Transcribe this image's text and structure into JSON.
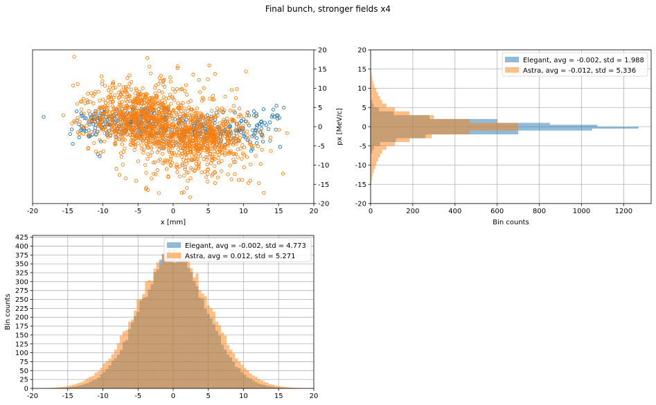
{
  "figure": {
    "title": "Final bunch, stronger fields x4"
  },
  "colors": {
    "elegant": "#1f77b4",
    "astra": "#ff7f0e",
    "grid": "#b0b0b0"
  },
  "chart_data": [
    {
      "id": "scatter",
      "type": "scatter",
      "title": "",
      "xlabel": "x [mm]",
      "ylabel": "",
      "xlim": [
        -20,
        20
      ],
      "ylim": [
        -20,
        20
      ],
      "xticks": [
        -20,
        -15,
        -10,
        -5,
        0,
        5,
        10,
        15,
        20
      ],
      "yticks": [
        -20,
        -15,
        -10,
        -5,
        0,
        5,
        10,
        15,
        20
      ],
      "y_tick_side": "right",
      "grid": false,
      "series": [
        {
          "color": "#1f77b4",
          "marker": "open-circle",
          "clusters": [
            {
              "cx": -5.5,
              "cy": 1.5,
              "sx": 3.2,
              "sy": 2.2,
              "count": 180
            },
            {
              "cx": 4.0,
              "cy": -1.0,
              "sx": 3.5,
              "sy": 2.0,
              "count": 180
            },
            {
              "cx": -12.0,
              "cy": 0.0,
              "sx": 1.4,
              "sy": 2.5,
              "count": 50
            },
            {
              "cx": 12.5,
              "cy": 0.0,
              "sx": 1.5,
              "sy": 2.5,
              "count": 50
            }
          ]
        },
        {
          "color": "#ff7f0e",
          "marker": "open-circle",
          "clusters": [
            {
              "cx": -5.0,
              "cy": 2.0,
              "sx": 3.4,
              "sy": 4.0,
              "count": 700
            },
            {
              "cx": 3.5,
              "cy": -2.5,
              "sx": 3.6,
              "sy": 4.0,
              "count": 700
            },
            {
              "cx": -4.0,
              "cy": 8.0,
              "sx": 5.0,
              "sy": 5.5,
              "count": 90
            },
            {
              "cx": 4.0,
              "cy": -8.0,
              "sx": 5.0,
              "sy": 5.5,
              "count": 90
            }
          ]
        }
      ]
    },
    {
      "id": "px-histogram",
      "type": "bar",
      "orientation": "horizontal",
      "title": "",
      "xlabel": "Bin counts",
      "ylabel": "px [MeV/c]",
      "xlim": [
        0,
        1330
      ],
      "ylim": [
        -20,
        20
      ],
      "xticks": [
        0,
        200,
        400,
        600,
        800,
        1000,
        1200
      ],
      "yticks": [
        -20,
        -15,
        -10,
        -5,
        0,
        5,
        10,
        15,
        20
      ],
      "grid": true,
      "legend": "top-right",
      "series": [
        {
          "name": "Elegant, avg = -0.002, std = 1.988",
          "color": "#1f77b4",
          "bins": [
            [
              -7,
              -6,
              8
            ],
            [
              -6,
              -5,
              15
            ],
            [
              -5,
              -4,
              45
            ],
            [
              -4,
              -3,
              120
            ],
            [
              -3,
              -2,
              260
            ],
            [
              -2,
              -1,
              700
            ],
            [
              -1,
              -0.5,
              1050
            ],
            [
              -0.5,
              0,
              1270
            ],
            [
              0,
              0.5,
              1075
            ],
            [
              0.5,
              1,
              850
            ],
            [
              1,
              2,
              600
            ],
            [
              2,
              3,
              280
            ],
            [
              3,
              4,
              110
            ],
            [
              4,
              5,
              40
            ],
            [
              5,
              6,
              15
            ],
            [
              6,
              7,
              8
            ]
          ]
        },
        {
          "name": "Astra, avg = -0.012, std = 5.336",
          "color": "#ff7f0e",
          "bins": [
            [
              -15,
              -14,
              3
            ],
            [
              -14,
              -13,
              6
            ],
            [
              -13,
              -12,
              10
            ],
            [
              -12,
              -11,
              15
            ],
            [
              -11,
              -10,
              22
            ],
            [
              -10,
              -9,
              28
            ],
            [
              -9,
              -8,
              36
            ],
            [
              -8,
              -7,
              45
            ],
            [
              -7,
              -6,
              55
            ],
            [
              -6,
              -5,
              75
            ],
            [
              -5,
              -4,
              115
            ],
            [
              -4,
              -3,
              185
            ],
            [
              -3,
              -2,
              290
            ],
            [
              -2,
              -1,
              470
            ],
            [
              -1,
              0,
              700
            ],
            [
              0,
              1,
              700
            ],
            [
              1,
              2,
              470
            ],
            [
              2,
              3,
              300
            ],
            [
              3,
              4,
              185
            ],
            [
              4,
              5,
              115
            ],
            [
              5,
              6,
              75
            ],
            [
              6,
              7,
              55
            ],
            [
              7,
              8,
              45
            ],
            [
              8,
              9,
              35
            ],
            [
              9,
              10,
              26
            ],
            [
              10,
              11,
              18
            ],
            [
              11,
              12,
              12
            ],
            [
              12,
              13,
              8
            ],
            [
              13,
              14,
              5
            ],
            [
              14,
              15,
              3
            ]
          ]
        }
      ]
    },
    {
      "id": "x-histogram",
      "type": "bar",
      "title": "",
      "xlabel": "",
      "ylabel": "Bin counts",
      "xlim": [
        -20,
        20
      ],
      "ylim": [
        0,
        430
      ],
      "xticks": [
        -20,
        -15,
        -10,
        -5,
        0,
        5,
        10,
        15,
        20
      ],
      "yticks": [
        0,
        25,
        50,
        75,
        100,
        125,
        150,
        175,
        200,
        225,
        250,
        275,
        300,
        325,
        350,
        375,
        400,
        425
      ],
      "grid": true,
      "legend": "top-right",
      "series": [
        {
          "name": "Elegant, avg = -0.002, std = 4.773",
          "color": "#1f77b4",
          "mean": -0.002,
          "std": 4.773,
          "peak": 372
        },
        {
          "name": "Astra, avg = 0.012, std = 5.271",
          "color": "#ff7f0e",
          "mean": 0.012,
          "std": 5.271,
          "peak": 378
        }
      ]
    }
  ]
}
